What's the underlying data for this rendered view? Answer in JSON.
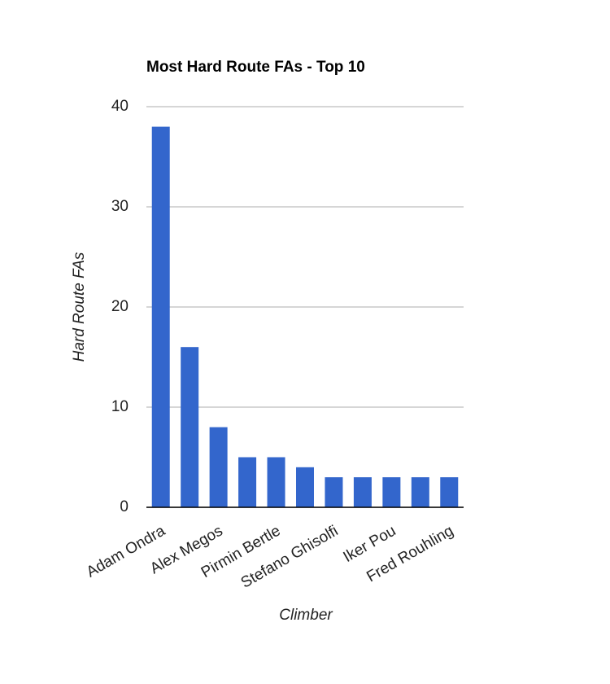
{
  "chart_data": {
    "type": "bar",
    "title": "Most Hard Route FAs - Top 10",
    "x_label": "Climber",
    "y_label": "Hard Route FAs",
    "categories": [
      "Adam Ondra",
      null,
      "Alex Megos",
      null,
      "Pirmin Bertle",
      null,
      "Stefano Ghisolfi",
      null,
      "Iker Pou",
      null,
      "Fred Rouhling"
    ],
    "values": [
      38,
      16,
      8,
      5,
      5,
      4,
      3,
      3,
      3,
      3,
      3
    ],
    "color": "#3366cc",
    "ylim": [
      0,
      40
    ],
    "yticks": [
      0,
      10,
      20,
      30,
      40
    ],
    "grid": true
  }
}
